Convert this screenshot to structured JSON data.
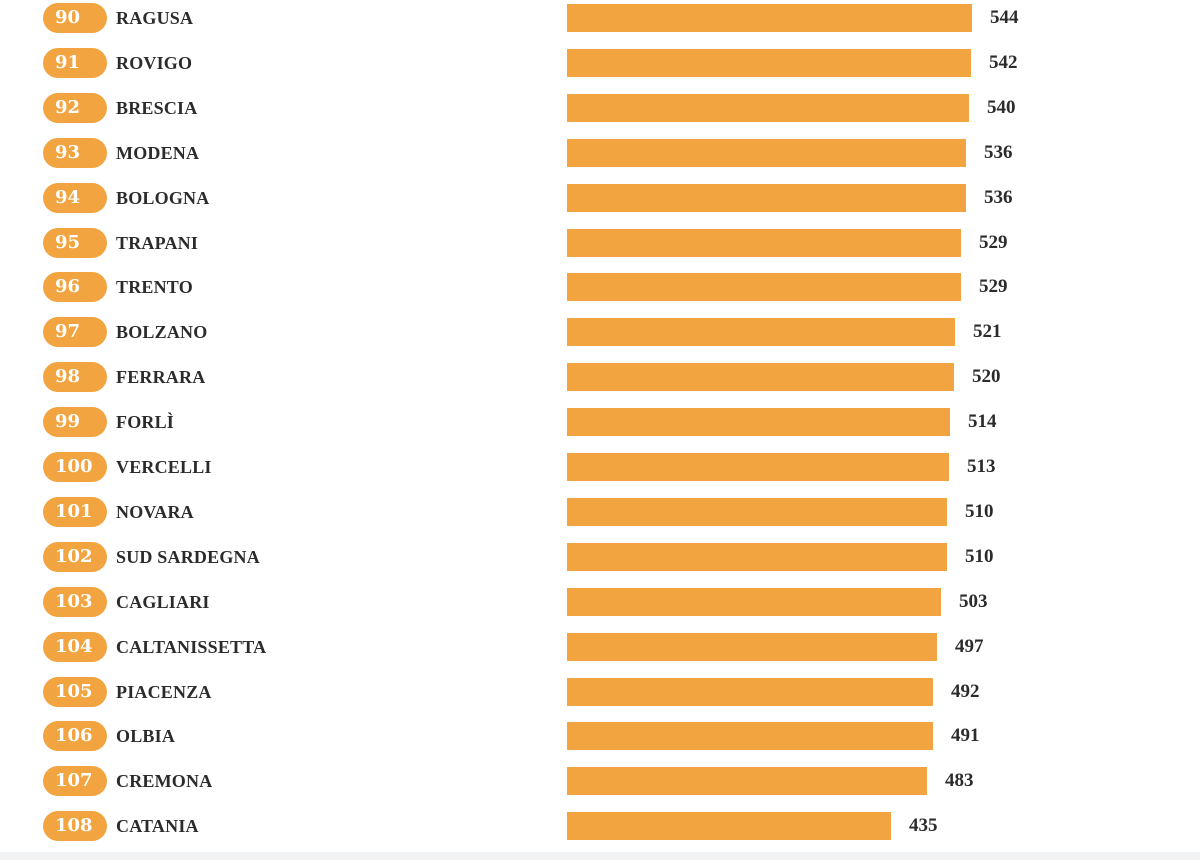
{
  "chart_data": {
    "type": "bar",
    "orientation": "horizontal",
    "title": "",
    "xlabel": "",
    "ylabel": "",
    "xlim": [
      0,
      544
    ],
    "grid": false,
    "colors": {
      "bar": "#f2a440",
      "rank_pill": "#f2a440",
      "text": "#2b2b2b"
    },
    "rows": [
      {
        "rank": "90",
        "city": "RAGUSA",
        "value": 544
      },
      {
        "rank": "91",
        "city": "ROVIGO",
        "value": 542
      },
      {
        "rank": "92",
        "city": "BRESCIA",
        "value": 540
      },
      {
        "rank": "93",
        "city": "MODENA",
        "value": 536
      },
      {
        "rank": "94",
        "city": "BOLOGNA",
        "value": 536
      },
      {
        "rank": "95",
        "city": "TRAPANI",
        "value": 529
      },
      {
        "rank": "96",
        "city": "TRENTO",
        "value": 529
      },
      {
        "rank": "97",
        "city": "BOLZANO",
        "value": 521
      },
      {
        "rank": "98",
        "city": "FERRARA",
        "value": 520
      },
      {
        "rank": "99",
        "city": "FORLÌ",
        "value": 514
      },
      {
        "rank": "100",
        "city": "VERCELLI",
        "value": 513
      },
      {
        "rank": "101",
        "city": "NOVARA",
        "value": 510
      },
      {
        "rank": "102",
        "city": "SUD SARDEGNA",
        "value": 510
      },
      {
        "rank": "103",
        "city": "CAGLIARI",
        "value": 503
      },
      {
        "rank": "104",
        "city": "CALTANISSETTA",
        "value": 497
      },
      {
        "rank": "105",
        "city": "PIACENZA",
        "value": 492
      },
      {
        "rank": "106",
        "city": "OLBIA",
        "value": 491
      },
      {
        "rank": "107",
        "city": "CREMONA",
        "value": 483
      },
      {
        "rank": "108",
        "city": "CATANIA",
        "value": 435
      }
    ]
  }
}
